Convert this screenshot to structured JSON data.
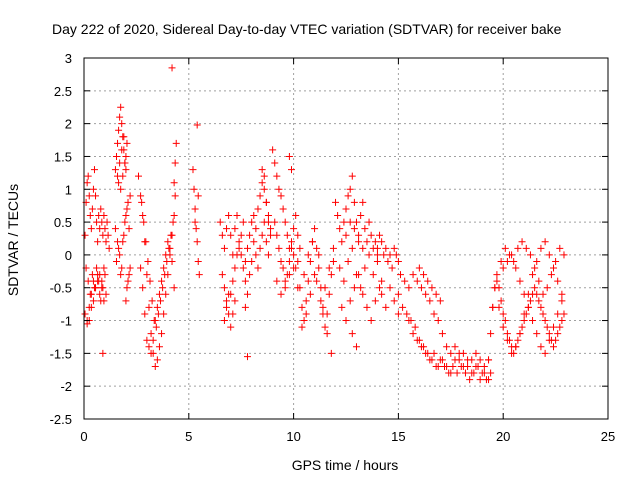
{
  "chart_data": {
    "type": "scatter",
    "title": "Day 222 of 2020, Sidereal Day-to-day VTEC variation (SDTVAR) for receiver bake",
    "xlabel": "GPS time / hours",
    "ylabel": "SDTVAR / TECUs",
    "xlim": [
      0,
      25
    ],
    "ylim": [
      -2.5,
      3
    ],
    "grid": true,
    "marker": "+",
    "color": "#ff0000",
    "xticks": [
      0,
      5,
      10,
      15,
      20,
      25
    ],
    "xtick_labels": [
      "0",
      "5",
      "10",
      "15",
      "20",
      "25"
    ],
    "yticks": [
      -2.5,
      -2,
      -1.5,
      -1,
      -0.5,
      0,
      0.5,
      1,
      1.5,
      2,
      2.5,
      3
    ],
    "ytick_labels": [
      "-2.5",
      "-2",
      "-1.5",
      "-1",
      "-0.5",
      "0",
      "0.5",
      "1",
      "1.5",
      "2",
      "2.5",
      "3"
    ],
    "series": [
      {
        "name": "SDTVAR",
        "x": [
          0.05,
          0.1,
          0.15,
          0.2,
          0.25,
          0.3,
          0.35,
          0.4,
          0.45,
          0.5,
          0.55,
          0.6,
          0.65,
          0.7,
          0.75,
          0.8,
          0.85,
          0.9,
          0.95,
          1.0,
          1.05,
          1.1,
          1.15,
          1.2,
          0.1,
          0.2,
          0.3,
          0.4,
          0.5,
          0.6,
          0.7,
          0.8,
          0.9,
          1.0,
          0.15,
          0.25,
          0.35,
          0.45,
          0.55,
          0.65,
          0.75,
          0.85,
          0.95,
          0.05,
          0.15,
          0.25,
          0.35,
          0.45,
          0.55,
          0.65,
          0.75,
          0.85,
          0.95,
          1.05,
          0.9,
          1.5,
          1.55,
          1.6,
          1.65,
          1.7,
          1.75,
          1.8,
          1.85,
          1.9,
          1.95,
          2.0,
          2.05,
          1.6,
          1.7,
          1.8,
          1.9,
          2.0,
          1.65,
          1.75,
          1.85,
          1.95,
          1.5,
          1.6,
          1.7,
          1.8,
          1.9,
          2.0,
          2.1,
          2.2,
          1.55,
          1.65,
          1.75,
          1.85,
          1.95,
          2.05,
          2.15,
          2.0,
          2.1,
          2.2,
          2.05,
          2.15,
          2.6,
          2.7,
          2.8,
          2.9,
          3.0,
          3.1,
          3.2,
          3.3,
          3.4,
          3.5,
          3.6,
          3.7,
          3.8,
          3.9,
          4.0,
          4.1,
          4.2,
          4.3,
          2.7,
          2.8,
          2.9,
          3.0,
          3.1,
          3.2,
          3.3,
          3.4,
          3.5,
          3.6,
          3.7,
          3.8,
          3.9,
          4.0,
          4.1,
          4.2,
          2.75,
          2.85,
          2.95,
          3.05,
          3.15,
          3.25,
          3.35,
          3.45,
          3.55,
          3.65,
          3.75,
          3.85,
          3.95,
          4.05,
          4.15,
          4.25,
          4.3,
          4.35,
          4.4,
          4.35,
          4.2,
          5.2,
          5.25,
          5.3,
          5.35,
          5.4,
          5.45,
          5.5,
          5.3,
          5.4,
          5.45,
          6.5,
          6.6,
          6.7,
          6.8,
          6.9,
          7.0,
          7.1,
          7.2,
          7.3,
          7.4,
          7.5,
          7.6,
          6.6,
          6.7,
          6.8,
          6.9,
          7.0,
          7.1,
          7.2,
          7.3,
          7.4,
          7.5,
          6.7,
          6.8,
          6.9,
          7.0,
          7.1,
          7.2,
          7.7,
          7.8,
          7.6,
          7.7,
          7.8,
          7.9,
          8.0,
          8.1,
          8.2,
          8.3,
          8.4,
          8.5,
          8.6,
          8.7,
          8.8,
          8.9,
          7.7,
          7.8,
          7.9,
          8.0,
          8.1,
          8.2,
          8.3,
          8.4,
          8.5,
          8.6,
          8.7,
          8.8,
          8.5,
          8.6,
          8.7,
          8.8,
          8.9,
          9.0,
          9.1,
          9.2,
          9.3,
          9.4,
          9.5,
          9.6,
          9.7,
          9.8,
          9.9,
          10.0,
          10.1,
          10.2,
          10.3,
          9.1,
          9.2,
          9.3,
          9.4,
          9.5,
          9.6,
          9.7,
          9.8,
          9.9,
          10.0,
          10.1,
          10.2,
          9.2,
          9.4,
          9.6,
          9.8,
          10.0,
          10.2,
          9.8,
          9.9,
          10.3,
          10.4,
          10.5,
          10.6,
          10.7,
          10.8,
          10.9,
          11.0,
          11.1,
          11.2,
          11.3,
          11.4,
          11.5,
          11.6,
          11.7,
          11.8,
          11.9,
          10.5,
          10.7,
          10.9,
          11.1,
          11.3,
          11.5,
          11.7,
          11.9,
          10.4,
          10.6,
          10.8,
          11.0,
          11.2,
          11.4,
          11.6,
          11.8,
          12.0,
          12.1,
          12.2,
          12.3,
          12.4,
          12.5,
          12.6,
          12.7,
          12.8,
          12.9,
          13.0,
          13.1,
          13.2,
          13.3,
          13.4,
          13.5,
          13.6,
          13.7,
          13.8,
          13.9,
          14.0,
          12.2,
          12.4,
          12.6,
          12.8,
          13.0,
          13.2,
          13.4,
          13.6,
          13.8,
          14.0,
          14.2,
          12.3,
          12.5,
          12.7,
          12.9,
          13.1,
          13.3,
          13.5,
          13.7,
          13.9,
          14.1,
          12.5,
          12.7,
          12.9,
          13.1,
          13.3,
          12.8,
          13.0,
          14.0,
          14.1,
          14.2,
          14.3,
          14.4,
          14.5,
          14.6,
          14.7,
          14.8,
          14.9,
          15.0,
          14.2,
          14.4,
          14.6,
          14.8,
          15.0,
          15.0,
          15.2,
          15.4,
          15.6,
          15.8,
          16.0,
          16.2,
          16.4,
          16.6,
          16.8,
          17.0,
          17.2,
          17.4,
          17.6,
          17.8,
          18.0,
          18.2,
          18.4,
          18.6,
          18.8,
          19.0,
          19.2,
          19.4,
          15.1,
          15.3,
          15.5,
          15.7,
          15.9,
          16.1,
          16.3,
          16.5,
          16.7,
          16.9,
          17.1,
          17.3,
          17.5,
          17.7,
          17.9,
          18.1,
          18.3,
          18.5,
          18.7,
          18.9,
          19.1,
          19.3,
          15.5,
          15.7,
          15.9,
          16.1,
          16.3,
          16.5,
          16.7,
          16.9,
          17.1,
          17.3,
          17.5,
          17.7,
          17.9,
          18.1,
          18.3,
          18.5,
          18.7,
          18.9,
          19.1,
          19.3,
          16.0,
          16.2,
          16.4,
          16.6,
          16.8,
          17.0,
          19.3,
          19.4,
          19.5,
          19.6,
          19.7,
          19.8,
          19.9,
          20.0,
          20.1,
          20.2,
          20.3,
          20.4,
          20.5,
          20.6,
          20.7,
          20.8,
          20.9,
          21.0,
          21.1,
          21.2,
          21.3,
          21.4,
          21.5,
          21.6,
          21.7,
          21.8,
          21.9,
          22.0,
          22.1,
          22.2,
          22.3,
          22.4,
          22.5,
          22.6,
          22.7,
          22.8,
          22.9,
          19.5,
          19.7,
          19.9,
          20.1,
          20.3,
          20.5,
          20.7,
          20.9,
          21.1,
          21.3,
          21.5,
          21.7,
          21.9,
          22.1,
          22.3,
          22.5,
          22.7,
          22.9,
          19.6,
          19.8,
          20.0,
          20.2,
          20.4,
          20.6,
          20.8,
          21.0,
          21.2,
          21.4,
          21.6,
          21.8,
          22.0,
          22.2,
          22.4,
          22.6,
          22.8,
          20.0,
          20.2,
          20.4,
          20.6,
          20.8,
          21.0,
          21.2,
          21.4,
          21.6,
          21.8,
          22.0,
          22.2,
          22.4,
          22.6,
          22.8,
          4.3
        ],
        "y": [
          0.3,
          0.8,
          1.1,
          1.2,
          0.9,
          0.6,
          0.4,
          0.7,
          1.0,
          1.3,
          0.9,
          0.5,
          0.2,
          0.6,
          0.4,
          0.7,
          0.5,
          0.3,
          0.6,
          0.4,
          0.2,
          0.5,
          0.3,
          0.1,
          -0.2,
          -0.4,
          -0.6,
          -0.3,
          -0.5,
          -0.2,
          -0.4,
          -0.7,
          -0.5,
          -0.3,
          -1.0,
          -0.8,
          -0.6,
          -0.4,
          -0.5,
          -0.3,
          -0.6,
          -0.4,
          -0.2,
          -0.9,
          -1.05,
          -1.0,
          -0.8,
          -0.7,
          -0.5,
          -0.4,
          -0.3,
          -0.5,
          -0.7,
          -0.6,
          -1.5,
          1.3,
          1.5,
          1.7,
          1.9,
          2.1,
          2.25,
          2.0,
          1.8,
          1.6,
          1.4,
          1.5,
          1.7,
          1.2,
          1.4,
          1.6,
          1.8,
          1.3,
          1.1,
          1.0,
          1.2,
          1.4,
          0.4,
          0.2,
          0.0,
          -0.2,
          0.3,
          0.6,
          0.8,
          0.9,
          -0.1,
          0.1,
          -0.3,
          0.2,
          0.5,
          0.7,
          0.4,
          -0.7,
          -0.4,
          -0.2,
          -0.5,
          -0.3,
          1.2,
          0.9,
          0.6,
          0.2,
          -0.3,
          -0.8,
          -1.2,
          -1.5,
          -1.7,
          -1.6,
          -1.4,
          -1.2,
          -0.9,
          -0.6,
          -0.3,
          0.0,
          0.3,
          0.6,
          -0.2,
          -0.5,
          -0.9,
          -1.3,
          -1.4,
          -1.5,
          -1.3,
          -1.0,
          -0.8,
          -0.6,
          -0.4,
          -0.2,
          0.0,
          0.2,
          0.1,
          -0.1,
          0.8,
          0.5,
          0.2,
          -0.1,
          -0.4,
          -0.7,
          -1.0,
          -1.1,
          -0.9,
          -0.7,
          -0.5,
          -0.3,
          -0.1,
          0.1,
          0.3,
          0.5,
          1.1,
          1.4,
          1.7,
          0.9,
          2.85,
          1.3,
          1.0,
          0.7,
          0.4,
          0.2,
          -0.1,
          -0.3,
          0.5,
          1.98,
          0.9,
          0.5,
          0.3,
          0.1,
          0.4,
          0.6,
          0.3,
          0.0,
          0.4,
          0.6,
          0.2,
          0.3,
          0.5,
          -0.3,
          -0.5,
          -0.7,
          -0.9,
          -0.6,
          -0.4,
          -0.2,
          0.0,
          0.1,
          0.0,
          -1.0,
          -0.8,
          -0.6,
          -1.1,
          -0.9,
          -0.7,
          -0.8,
          -1.55,
          -0.2,
          -0.1,
          0.1,
          0.3,
          0.5,
          0.6,
          0.4,
          0.7,
          0.9,
          1.1,
          1.2,
          0.8,
          0.6,
          0.4,
          -0.4,
          -0.6,
          -0.3,
          -0.1,
          0.2,
          0.0,
          -0.2,
          0.1,
          0.3,
          0.5,
          0.2,
          0.0,
          1.3,
          1.0,
          0.8,
          0.5,
          0.3,
          1.6,
          1.4,
          1.2,
          1.0,
          0.9,
          0.7,
          0.5,
          0.3,
          0.1,
          0.2,
          0.4,
          0.6,
          0.3,
          0.1,
          0.5,
          0.3,
          0.1,
          -0.1,
          -0.2,
          -0.4,
          -0.3,
          -0.1,
          0.1,
          0.0,
          -0.2,
          -0.1,
          -0.4,
          -0.6,
          -0.5,
          -0.3,
          -0.2,
          -0.5,
          1.5,
          1.3,
          -0.5,
          -0.8,
          -1.0,
          -0.7,
          -0.4,
          -0.1,
          0.2,
          0.4,
          0.1,
          -0.2,
          -0.5,
          -0.8,
          -1.1,
          -0.9,
          -0.6,
          -0.3,
          -0.1,
          -0.3,
          0.0,
          0.2,
          -0.4,
          -0.7,
          -0.5,
          -0.2,
          0.1,
          -1.1,
          -0.9,
          -0.6,
          -0.3,
          0.0,
          -0.9,
          -1.2,
          -1.5,
          0.8,
          0.6,
          0.4,
          0.2,
          0.5,
          0.7,
          0.9,
          1.0,
          1.2,
          0.8,
          0.5,
          0.3,
          0.6,
          0.8,
          0.4,
          0.2,
          0.5,
          0.3,
          0.1,
          0.2,
          0.0,
          -0.2,
          -0.4,
          -0.1,
          0.1,
          -0.3,
          -0.5,
          -0.2,
          0.0,
          -0.3,
          -0.1,
          -0.4,
          -0.8,
          -1.0,
          -0.7,
          -0.5,
          -0.3,
          -0.6,
          -0.8,
          -1.0,
          -0.7,
          -0.5,
          0.3,
          0.5,
          0.4,
          0.2,
          0.1,
          -1.2,
          -1.4,
          0.1,
          0.3,
          0.2,
          0.0,
          0.1,
          -0.1,
          0.0,
          -0.2,
          0.1,
          0.0,
          -0.1,
          -0.6,
          -0.8,
          -0.5,
          -0.7,
          -0.9,
          -0.6,
          -0.8,
          -0.9,
          -1.0,
          -1.1,
          -1.3,
          -1.4,
          -1.5,
          -1.6,
          -1.7,
          -1.6,
          -1.7,
          -1.8,
          -1.7,
          -1.8,
          -1.7,
          -1.8,
          -1.9,
          -1.8,
          -1.7,
          -1.8,
          -1.9,
          -1.8,
          -0.3,
          -0.4,
          -0.5,
          -0.3,
          -0.4,
          -0.5,
          -0.6,
          -0.7,
          -0.9,
          -1.0,
          -1.2,
          -1.4,
          -1.5,
          -1.4,
          -1.6,
          -1.5,
          -1.7,
          -1.6,
          -1.5,
          -1.6,
          -1.7,
          -1.6,
          -1.0,
          -1.2,
          -1.3,
          -1.4,
          -1.5,
          -1.6,
          -1.5,
          -1.7,
          -1.6,
          -1.7,
          -1.8,
          -1.6,
          -1.5,
          -1.7,
          -1.6,
          -1.8,
          -1.7,
          -1.9,
          -1.8,
          -1.9,
          -0.2,
          -0.3,
          -0.4,
          -0.5,
          -0.6,
          -0.7,
          -1.6,
          -1.2,
          -0.8,
          -0.5,
          -0.3,
          -0.5,
          -0.7,
          -0.9,
          -1.0,
          -1.2,
          -1.3,
          -1.4,
          -1.5,
          -1.4,
          -1.3,
          -1.2,
          -1.1,
          -1.0,
          -0.9,
          -0.8,
          -0.7,
          -0.6,
          -0.5,
          -0.6,
          -0.7,
          -0.8,
          -0.9,
          -1.0,
          -1.1,
          -1.2,
          -1.3,
          -1.4,
          -1.3,
          -1.2,
          -1.1,
          -1.0,
          -0.9,
          -0.8,
          -0.4,
          -0.1,
          0.1,
          0.0,
          -0.1,
          0.1,
          0.2,
          0.1,
          0.0,
          -0.2,
          -0.4,
          -0.6,
          -0.5,
          -0.3,
          -0.1,
          0.1,
          0.0,
          -0.5,
          -0.8,
          -1.1,
          -1.3,
          -1.5,
          -1.4,
          -1.2,
          -0.9,
          -0.6,
          -0.3,
          -0.1,
          0.1,
          0.2,
          0.0,
          -0.2,
          -0.4,
          -0.6,
          -0.2,
          -0.1,
          0.0,
          -0.2,
          -0.4,
          -0.6,
          -0.8,
          -1.0,
          -1.2,
          -1.4,
          -1.5,
          -1.3,
          -1.1,
          -0.9,
          -0.7,
          -0.5
        ]
      }
    ]
  }
}
